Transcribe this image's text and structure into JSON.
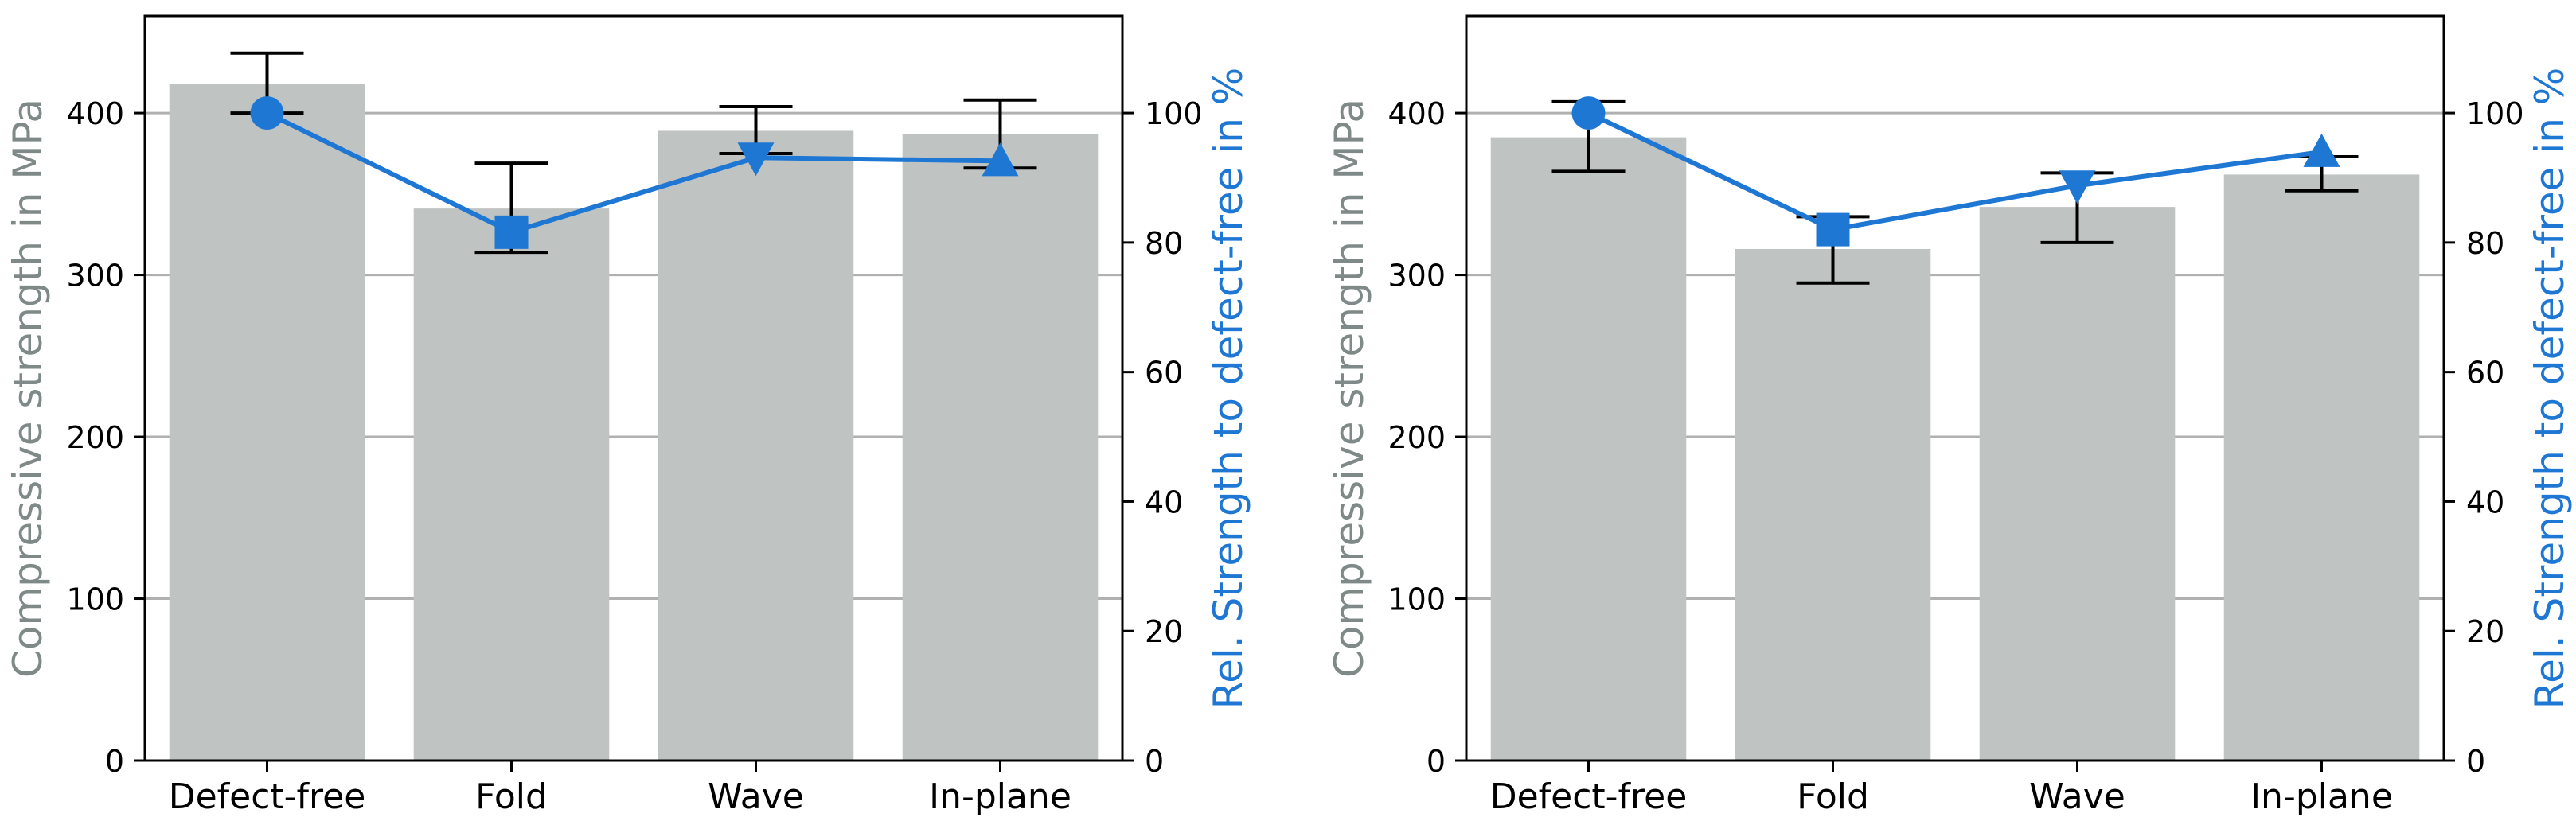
{
  "chart_data": [
    {
      "type": "bar",
      "categories": [
        "Defect-free",
        "Fold",
        "Wave",
        "In-plane"
      ],
      "ylabel": "Compressive strength in MPa",
      "ylim": [
        0,
        460
      ],
      "yticks": [
        0,
        100,
        200,
        300,
        400
      ],
      "y2label": "Rel. Strength to defect-free in %",
      "y2lim": [
        0,
        115
      ],
      "y2ticks": [
        0,
        20,
        40,
        60,
        80,
        100
      ],
      "grid": true,
      "bar_color": "#bfc3c2",
      "bars": {
        "values": [
          418,
          341,
          389,
          387
        ],
        "err_low": [
          400,
          314,
          375,
          366
        ],
        "err_high": [
          437,
          369,
          404,
          408
        ]
      },
      "relative": {
        "values": [
          100,
          81.6,
          93.1,
          92.6
        ],
        "markers": [
          "circle",
          "square",
          "triangle-down",
          "triangle-up"
        ],
        "color": "#1f77d4"
      }
    },
    {
      "type": "bar",
      "categories": [
        "Defect-free",
        "Fold",
        "Wave",
        "In-plane"
      ],
      "ylabel": "Compressive strength in MPa",
      "ylim": [
        0,
        460
      ],
      "yticks": [
        0,
        100,
        200,
        300,
        400
      ],
      "y2label": "Rel. Strength to defect-free in %",
      "y2lim": [
        0,
        115
      ],
      "y2ticks": [
        0,
        20,
        40,
        60,
        80,
        100
      ],
      "grid": true,
      "bar_color": "#bfc3c2",
      "bars": {
        "values": [
          385,
          316,
          342,
          362
        ],
        "err_low": [
          364,
          295,
          320,
          352
        ],
        "err_high": [
          407,
          336,
          363,
          373
        ]
      },
      "relative": {
        "values": [
          100,
          82,
          88.8,
          94
        ],
        "markers": [
          "circle",
          "square",
          "triangle-down",
          "triangle-up"
        ],
        "color": "#1f77d4"
      }
    }
  ]
}
